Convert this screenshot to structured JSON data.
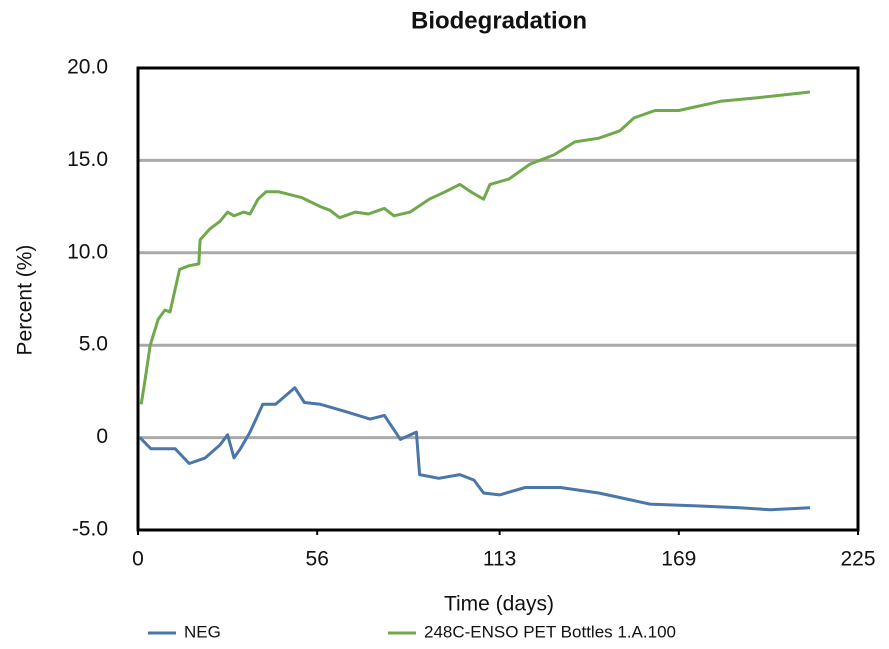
{
  "chart_data": {
    "type": "line",
    "title": "Biodegradation",
    "x_label": "Time (days)",
    "y_label": "Percent (%)",
    "xlim": [
      0,
      225
    ],
    "xticks": [
      0,
      56,
      113,
      169,
      225
    ],
    "ylim": [
      -5,
      20
    ],
    "yticks": [
      {
        "value": -5,
        "label": "-5.0"
      },
      0,
      {
        "value": 5,
        "label": "5.0"
      },
      {
        "value": 10,
        "label": "10.0"
      },
      {
        "value": 15,
        "label": "15.0"
      },
      {
        "value": 20,
        "label": "20.0"
      }
    ],
    "grid": true,
    "legend": "bottom",
    "series": [
      {
        "name": "NEG",
        "color": "#4a76a8",
        "x": [
          0.6,
          4,
          11.6,
          16,
          21,
          25.6,
          28,
          30,
          32,
          35,
          39,
          43,
          49,
          52,
          57,
          65,
          72.5,
          77,
          82,
          87,
          88,
          94,
          100.6,
          105,
          108,
          113,
          121,
          132,
          144,
          160,
          175.6,
          188,
          197.5,
          210
        ],
        "values": [
          0,
          -0.6,
          -0.6,
          -1.4,
          -1.1,
          -0.4,
          0.15,
          -1.1,
          -0.6,
          0.3,
          1.8,
          1.8,
          2.7,
          1.9,
          1.8,
          1.4,
          1.0,
          1.2,
          -0.1,
          0.3,
          -2.0,
          -2.2,
          -2.0,
          -2.3,
          -3.0,
          -3.1,
          -2.7,
          -2.7,
          -3.0,
          -3.6,
          -3.7,
          -3.8,
          -3.9,
          -3.8
        ]
      },
      {
        "name": "248C-ENSO PET Bottles 1.A.100",
        "color": "#70a84c",
        "x": [
          1,
          2.2,
          3.8,
          6.3,
          8.4,
          10,
          13,
          16,
          19,
          19.4,
          22.5,
          25.6,
          28,
          30,
          33,
          35,
          37.5,
          40,
          44,
          51,
          57,
          60,
          63,
          68,
          72,
          77,
          80,
          85,
          91,
          96,
          100.6,
          104,
          108,
          110,
          116,
          122.5,
          130,
          136.5,
          144,
          150.6,
          155,
          161.6,
          169,
          182,
          194,
          210
        ],
        "values": [
          1.8,
          3.1,
          5.0,
          6.4,
          6.9,
          6.8,
          9.1,
          9.3,
          9.4,
          10.7,
          11.3,
          11.7,
          12.2,
          12.0,
          12.2,
          12.1,
          12.9,
          13.3,
          13.3,
          13.0,
          12.5,
          12.3,
          11.9,
          12.2,
          12.1,
          12.4,
          12.0,
          12.2,
          12.9,
          13.3,
          13.7,
          13.3,
          12.9,
          13.7,
          14.0,
          14.8,
          15.3,
          16.0,
          16.2,
          16.6,
          17.3,
          17.7,
          17.7,
          18.2,
          18.4,
          18.7
        ]
      }
    ]
  }
}
